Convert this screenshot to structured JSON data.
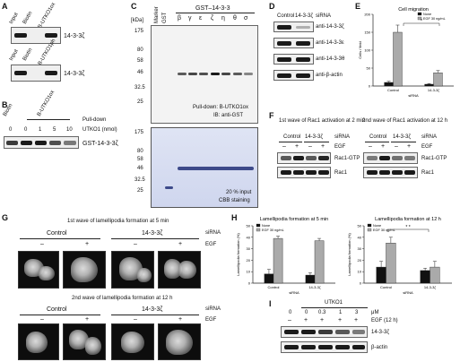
{
  "panel_letters": [
    "A",
    "B",
    "C",
    "D",
    "E",
    "F",
    "G",
    "H",
    "I"
  ],
  "A": {
    "blot1_lanes": [
      "Input",
      "Biotin",
      "B-UTKO1ox"
    ],
    "blot2_lanes": [
      "Input",
      "Biotin",
      "B-UTKO1ph"
    ],
    "protein": "14-3-3ζ"
  },
  "B": {
    "lane_header_left": "Biotin",
    "lane_header_right": "B-UTKO1ox",
    "pulldown_label": "Pull-down",
    "amounts": [
      "0",
      "0",
      "1",
      "5",
      "10"
    ],
    "amount_label": "UTKO1 (nmol)",
    "protein": "GST-14-3-3ζ"
  },
  "C": {
    "kda_label": "[kDa]",
    "marker_label": "Marker",
    "gst_label": "GST",
    "header": "GST–14-3-3",
    "isoforms": [
      "β",
      "γ",
      "ε",
      "ζ",
      "η",
      "θ",
      "σ"
    ],
    "mw_top": [
      "175",
      "80",
      "58",
      "46",
      "32.5",
      "25"
    ],
    "mw_bottom": [
      "175",
      "80",
      "58",
      "46",
      "32.5",
      "25"
    ],
    "pulldown_text": "Pull-down: B-UTKO1ox",
    "ib_text": "IB: anti-GST",
    "input_text": "20 % input",
    "stain_text": "CBB staining"
  },
  "D": {
    "columns": [
      "Control",
      "14-3-3ζ"
    ],
    "sirna_label": "siRNA",
    "rows": [
      "anti-14-3-3ζ",
      "anti-14-3-3ε",
      "anti-14-3-3θ",
      "anti-β-actin"
    ]
  },
  "E": {
    "title": "Cell migration",
    "legend": [
      "None",
      "EGF 30 ng/mL"
    ],
    "ylabel": "Cells / field",
    "sirna_label": "siRNA",
    "star": "*"
  },
  "F": {
    "title_left": "1st wave of Rac1 activation at 2 min",
    "title_right": "2nd wave of Rac1 activation at 12 h",
    "columns": [
      "Control",
      "14-3-3ζ"
    ],
    "sirna_label": "siRNA",
    "egf_label": "EGF",
    "signs": [
      "–",
      "+",
      "–",
      "+"
    ],
    "rows": [
      "Rac1-GTP",
      "Rac1"
    ]
  },
  "G": {
    "title_top": "1st wave of lamellipodia formation at 5 min",
    "title_bottom": "2nd wave of lamellipodia formation at 12 h",
    "columns": [
      "Control",
      "14-3-3ζ"
    ],
    "sirna_label": "siRNA",
    "egf_label": "EGF",
    "signs": [
      "–",
      "+",
      "–",
      "+"
    ]
  },
  "H": {
    "title_left": "Lamellipodia formation at 5 min",
    "title_right": "Lamellipodia formation at 12 h",
    "legend": [
      "None",
      "EGF 30 ng/mL"
    ],
    "ylabel": "Lamellipodia formation (%)",
    "sirna_label": "siRNA",
    "stars": "* *"
  },
  "I": {
    "compound": "UTKO1",
    "doses": [
      "0",
      "0",
      "0.3",
      "1",
      "3"
    ],
    "unit": "μM",
    "egf_label": "EGF (12 h)",
    "signs": [
      "–",
      "+",
      "+",
      "+",
      "+"
    ],
    "rows": [
      "14-3-3ζ",
      "β-actin"
    ]
  },
  "chart_data": [
    {
      "type": "bar",
      "title": "Cell migration",
      "categories": [
        "Control",
        "14-3-3ζ"
      ],
      "xlabel": "siRNA",
      "ylabel": "Cells / field",
      "ylim": [
        0,
        200
      ],
      "yticks": [
        "0",
        "50",
        "100",
        "150",
        "200"
      ],
      "series": [
        {
          "name": "None",
          "values": [
            10,
            5
          ]
        },
        {
          "name": "EGF 30 ng/mL",
          "values": [
            150,
            37
          ]
        }
      ],
      "errors": [
        [
          3,
          2
        ],
        [
          20,
          6
        ]
      ],
      "legend_position": "top-right"
    },
    {
      "type": "bar",
      "title": "Lamellipodia formation at 5 min",
      "categories": [
        "Control",
        "14-3-3ζ"
      ],
      "xlabel": "siRNA",
      "ylabel": "Lamellipodia formation (%)",
      "ylim": [
        0,
        50
      ],
      "yticks": [
        "0",
        "10",
        "20",
        "30",
        "40",
        "50"
      ],
      "series": [
        {
          "name": "None",
          "values": [
            8,
            7
          ]
        },
        {
          "name": "EGF 30 ng/mL",
          "values": [
            39,
            37
          ]
        }
      ],
      "errors": [
        [
          4,
          2
        ],
        [
          2,
          2
        ]
      ],
      "legend_position": "top-left"
    },
    {
      "type": "bar",
      "title": "Lamellipodia formation at 12 h",
      "categories": [
        "Control",
        "14-3-3ζ"
      ],
      "xlabel": "siRNA",
      "ylabel": "Lamellipodia formation (%)",
      "ylim": [
        0,
        50
      ],
      "yticks": [
        "0",
        "10",
        "20",
        "30",
        "40",
        "50"
      ],
      "series": [
        {
          "name": "None",
          "values": [
            14,
            11
          ]
        },
        {
          "name": "EGF 30 ng/mL",
          "values": [
            35,
            14
          ]
        }
      ],
      "errors": [
        [
          5,
          2
        ],
        [
          5,
          5
        ]
      ],
      "legend_position": "top-left"
    }
  ]
}
